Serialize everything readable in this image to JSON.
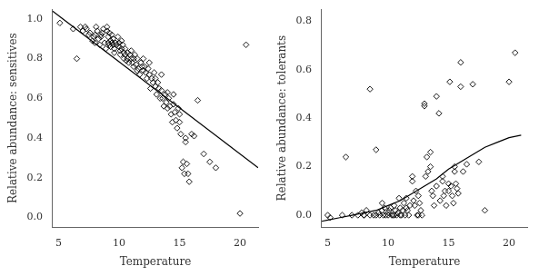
{
  "chart_data": [
    {
      "type": "scatter",
      "xlabel": "Temperature",
      "ylabel": "Relative abundance: sensitives",
      "xlim": [
        4.5,
        21.5
      ],
      "ylim": [
        -0.05,
        1.05
      ],
      "xticks": [
        5,
        10,
        15,
        20
      ],
      "yticks": [
        {
          "value": 0.0,
          "label": "0.0"
        },
        0.2,
        0.4,
        0.6,
        0.8,
        {
          "value": 1.0,
          "label": "1.0"
        }
      ],
      "grid": false,
      "series": [
        {
          "type": "scatter",
          "color": "black",
          "marker": "diamond",
          "x": [
            5.1,
            6.2,
            6.5,
            6.8,
            7.0,
            7.2,
            7.3,
            7.5,
            7.6,
            7.8,
            7.9,
            8.0,
            8.0,
            8.1,
            8.2,
            8.3,
            8.4,
            8.5,
            8.5,
            8.6,
            8.7,
            8.8,
            8.9,
            9.0,
            9.0,
            9.1,
            9.1,
            9.2,
            9.2,
            9.3,
            9.3,
            9.4,
            9.4,
            9.5,
            9.5,
            9.6,
            9.6,
            9.7,
            9.8,
            9.9,
            10.0,
            10.0,
            10.1,
            10.1,
            10.2,
            10.2,
            10.3,
            10.4,
            10.4,
            10.5,
            10.5,
            10.6,
            10.7,
            10.7,
            10.8,
            10.9,
            11.0,
            11.0,
            11.1,
            11.2,
            11.2,
            11.3,
            11.4,
            11.5,
            11.5,
            11.6,
            11.7,
            11.8,
            11.9,
            12.0,
            12.0,
            12.1,
            12.2,
            12.3,
            12.4,
            12.5,
            12.5,
            12.6,
            12.7,
            12.8,
            12.9,
            13.0,
            13.0,
            13.1,
            13.2,
            13.3,
            13.4,
            13.5,
            13.5,
            13.6,
            13.7,
            13.8,
            13.9,
            14.0,
            14.0,
            14.1,
            14.2,
            14.3,
            14.4,
            14.5,
            14.5,
            14.6,
            14.7,
            14.8,
            14.9,
            15.0,
            15.0,
            15.1,
            15.2,
            15.3,
            15.4,
            15.5,
            15.5,
            15.6,
            15.7,
            15.8,
            16.0,
            16.2,
            16.5,
            17.0,
            17.5,
            18.0,
            20.0,
            20.5
          ],
          "values": [
            0.98,
            0.95,
            0.8,
            0.96,
            0.94,
            0.96,
            0.95,
            0.92,
            0.93,
            0.89,
            0.91,
            0.88,
            0.92,
            0.96,
            0.94,
            0.9,
            0.87,
            0.92,
            0.91,
            0.93,
            0.95,
            0.88,
            0.85,
            0.96,
            0.94,
            0.91,
            0.88,
            0.87,
            0.93,
            0.89,
            0.86,
            0.88,
            0.92,
            0.9,
            0.87,
            0.85,
            0.83,
            0.88,
            0.87,
            0.91,
            0.88,
            0.86,
            0.84,
            0.82,
            0.85,
            0.89,
            0.87,
            0.83,
            0.8,
            0.85,
            0.82,
            0.79,
            0.83,
            0.8,
            0.78,
            0.82,
            0.8,
            0.84,
            0.78,
            0.76,
            0.8,
            0.82,
            0.77,
            0.74,
            0.8,
            0.75,
            0.72,
            0.78,
            0.76,
            0.74,
            0.8,
            0.76,
            0.73,
            0.7,
            0.75,
            0.72,
            0.78,
            0.65,
            0.7,
            0.68,
            0.73,
            0.7,
            0.66,
            0.62,
            0.68,
            0.65,
            0.6,
            0.64,
            0.72,
            0.6,
            0.56,
            0.62,
            0.58,
            0.55,
            0.63,
            0.6,
            0.56,
            0.52,
            0.48,
            0.62,
            0.57,
            0.53,
            0.49,
            0.45,
            0.55,
            0.52,
            0.48,
            0.42,
            0.25,
            0.28,
            0.22,
            0.4,
            0.38,
            0.27,
            0.22,
            0.18,
            0.42,
            0.41,
            0.59,
            0.32,
            0.28,
            0.25,
            0.02,
            0.87
          ]
        },
        {
          "type": "line",
          "color": "black",
          "x": [
            4.5,
            21.5
          ],
          "values": [
            1.04,
            0.25
          ]
        }
      ]
    },
    {
      "type": "scatter",
      "xlabel": "Temperature",
      "ylabel": "Relative abundance: tolerants",
      "xlim": [
        4.5,
        21.5
      ],
      "ylim": [
        -0.05,
        0.85
      ],
      "xticks": [
        5,
        10,
        15,
        20
      ],
      "yticks": [
        {
          "value": 0.0,
          "label": "0.0"
        },
        0.2,
        0.4,
        0.6,
        0.8
      ],
      "grid": false,
      "series": [
        {
          "type": "scatter",
          "color": "black",
          "marker": "diamond",
          "x": [
            5.0,
            5.2,
            6.2,
            6.5,
            7.0,
            7.5,
            7.8,
            8.0,
            8.0,
            8.2,
            8.5,
            8.5,
            8.8,
            9.0,
            9.0,
            9.2,
            9.3,
            9.5,
            9.5,
            9.6,
            9.7,
            9.8,
            10.0,
            10.0,
            10.1,
            10.2,
            10.3,
            10.4,
            10.5,
            10.5,
            10.6,
            10.7,
            10.8,
            10.9,
            11.0,
            11.0,
            11.1,
            11.2,
            11.3,
            11.4,
            11.5,
            11.5,
            11.6,
            11.7,
            11.8,
            12.0,
            12.0,
            12.1,
            12.2,
            12.3,
            12.4,
            12.5,
            12.5,
            12.6,
            12.7,
            12.8,
            13.0,
            13.0,
            13.1,
            13.2,
            13.3,
            13.5,
            13.5,
            13.6,
            13.7,
            13.8,
            14.0,
            14.0,
            14.2,
            14.3,
            14.5,
            14.5,
            14.6,
            14.7,
            14.8,
            15.0,
            15.0,
            15.1,
            15.2,
            15.3,
            15.4,
            15.5,
            15.5,
            15.6,
            15.7,
            15.8,
            16.0,
            16.0,
            16.2,
            16.5,
            17.0,
            17.5,
            18.0,
            20.0,
            20.5
          ],
          "values": [
            0.0,
            -0.01,
            0.0,
            0.24,
            0.0,
            0.0,
            0.01,
            0.0,
            0.0,
            0.02,
            0.0,
            0.52,
            0.0,
            0.0,
            0.27,
            0.01,
            0.0,
            0.02,
            0.05,
            0.0,
            0.03,
            0.0,
            0.0,
            0.01,
            0.02,
            0.03,
            0.0,
            0.0,
            0.0,
            0.04,
            0.02,
            0.0,
            0.01,
            0.07,
            0.0,
            0.03,
            0.0,
            0.02,
            0.05,
            0.0,
            0.03,
            0.07,
            0.02,
            0.0,
            0.04,
            0.14,
            0.16,
            0.06,
            0.04,
            0.1,
            0.0,
            0.0,
            0.08,
            0.05,
            0.02,
            0.0,
            0.45,
            0.46,
            0.16,
            0.24,
            0.18,
            0.2,
            0.26,
            0.1,
            0.08,
            0.04,
            0.12,
            0.49,
            0.42,
            0.06,
            0.14,
            0.16,
            0.08,
            0.1,
            0.04,
            0.1,
            0.13,
            0.55,
            0.12,
            0.08,
            0.05,
            0.18,
            0.2,
            0.13,
            0.11,
            0.09,
            0.53,
            0.63,
            0.18,
            0.21,
            0.54,
            0.22,
            0.02,
            0.55,
            0.67
          ]
        },
        {
          "type": "line",
          "color": "black",
          "x": [
            4.5,
            5.0,
            6.0,
            7.0,
            8.0,
            9.0,
            10.0,
            11.0,
            12.0,
            13.0,
            14.0,
            15.0,
            16.0,
            17.0,
            18.0,
            19.0,
            20.0,
            21.0
          ],
          "values": [
            -0.025,
            -0.02,
            -0.01,
            0.0,
            0.01,
            0.02,
            0.04,
            0.06,
            0.09,
            0.12,
            0.15,
            0.19,
            0.22,
            0.25,
            0.28,
            0.3,
            0.32,
            0.33
          ]
        }
      ]
    }
  ]
}
